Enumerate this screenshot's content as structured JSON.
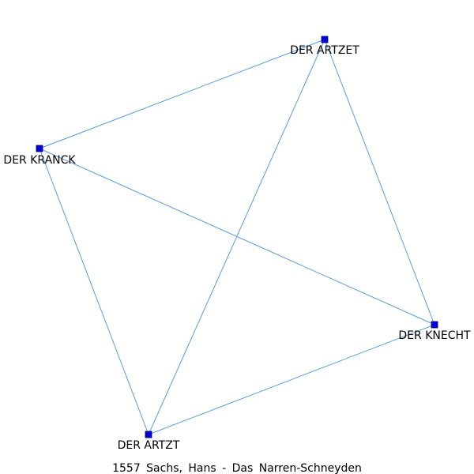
{
  "network": {
    "caption": "1557 Sachs, Hans - Das Narren-Schneyden",
    "nodes": [
      {
        "id": "artzet",
        "label": "DER ARTZET"
      },
      {
        "id": "kranck",
        "label": "DER KRANCK"
      },
      {
        "id": "knecht",
        "label": "DER KNECHT"
      },
      {
        "id": "artzt",
        "label": "DER ARTZT"
      }
    ],
    "edges": [
      [
        "kranck",
        "artzet"
      ],
      [
        "artzet",
        "artzt"
      ],
      [
        "artzet",
        "knecht"
      ],
      [
        "kranck",
        "knecht"
      ],
      [
        "kranck",
        "artzt"
      ],
      [
        "artzt",
        "knecht"
      ]
    ]
  },
  "colors": {
    "edge": "#5b9be0",
    "node": "#0000dd"
  }
}
